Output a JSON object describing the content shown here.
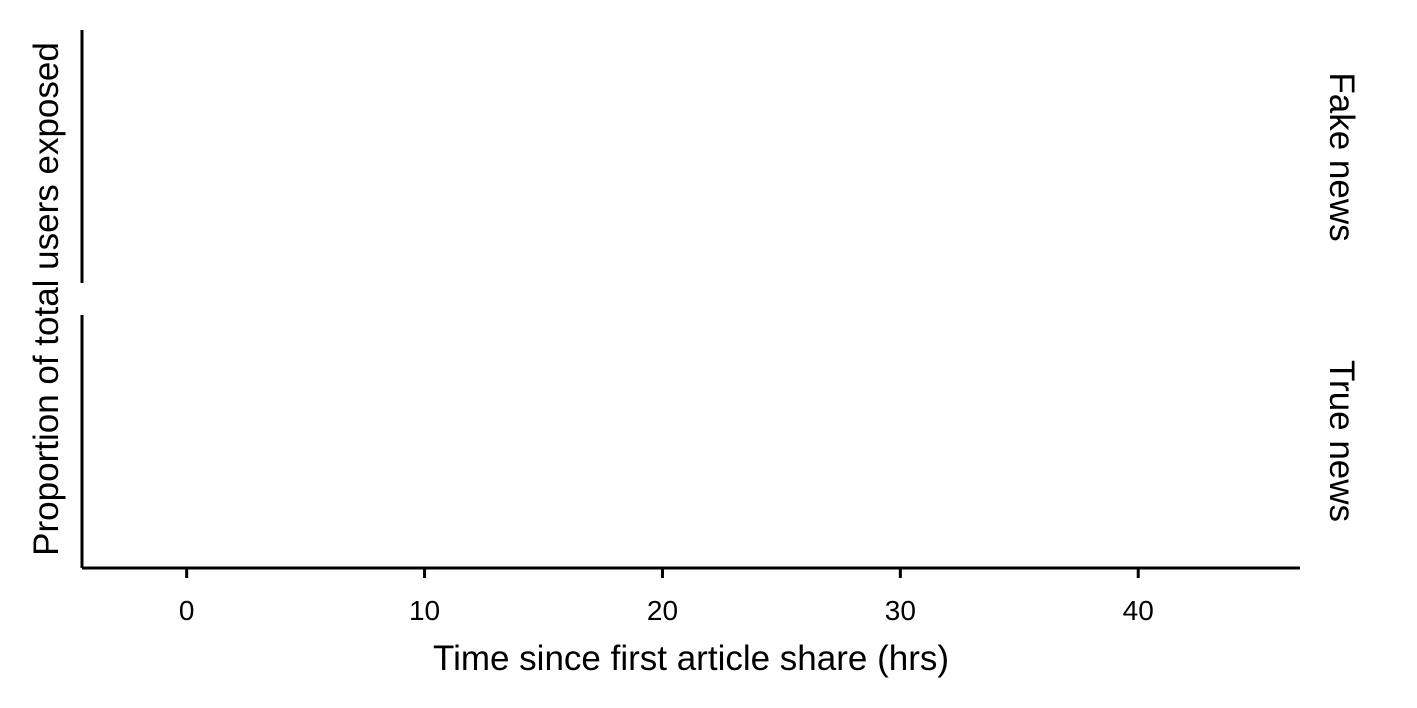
{
  "chart_data": {
    "type": "line",
    "title": "",
    "xlabel": "Time since first article share (hrs)",
    "ylabel": "Proportion of total users exposed",
    "xlim": [
      -4.4,
      46.8
    ],
    "x_ticks": [
      0,
      10,
      20,
      30,
      40
    ],
    "facets": [
      {
        "label": "Fake news",
        "series": []
      },
      {
        "label": "True news",
        "series": []
      }
    ],
    "grid": false,
    "legend": "none"
  }
}
